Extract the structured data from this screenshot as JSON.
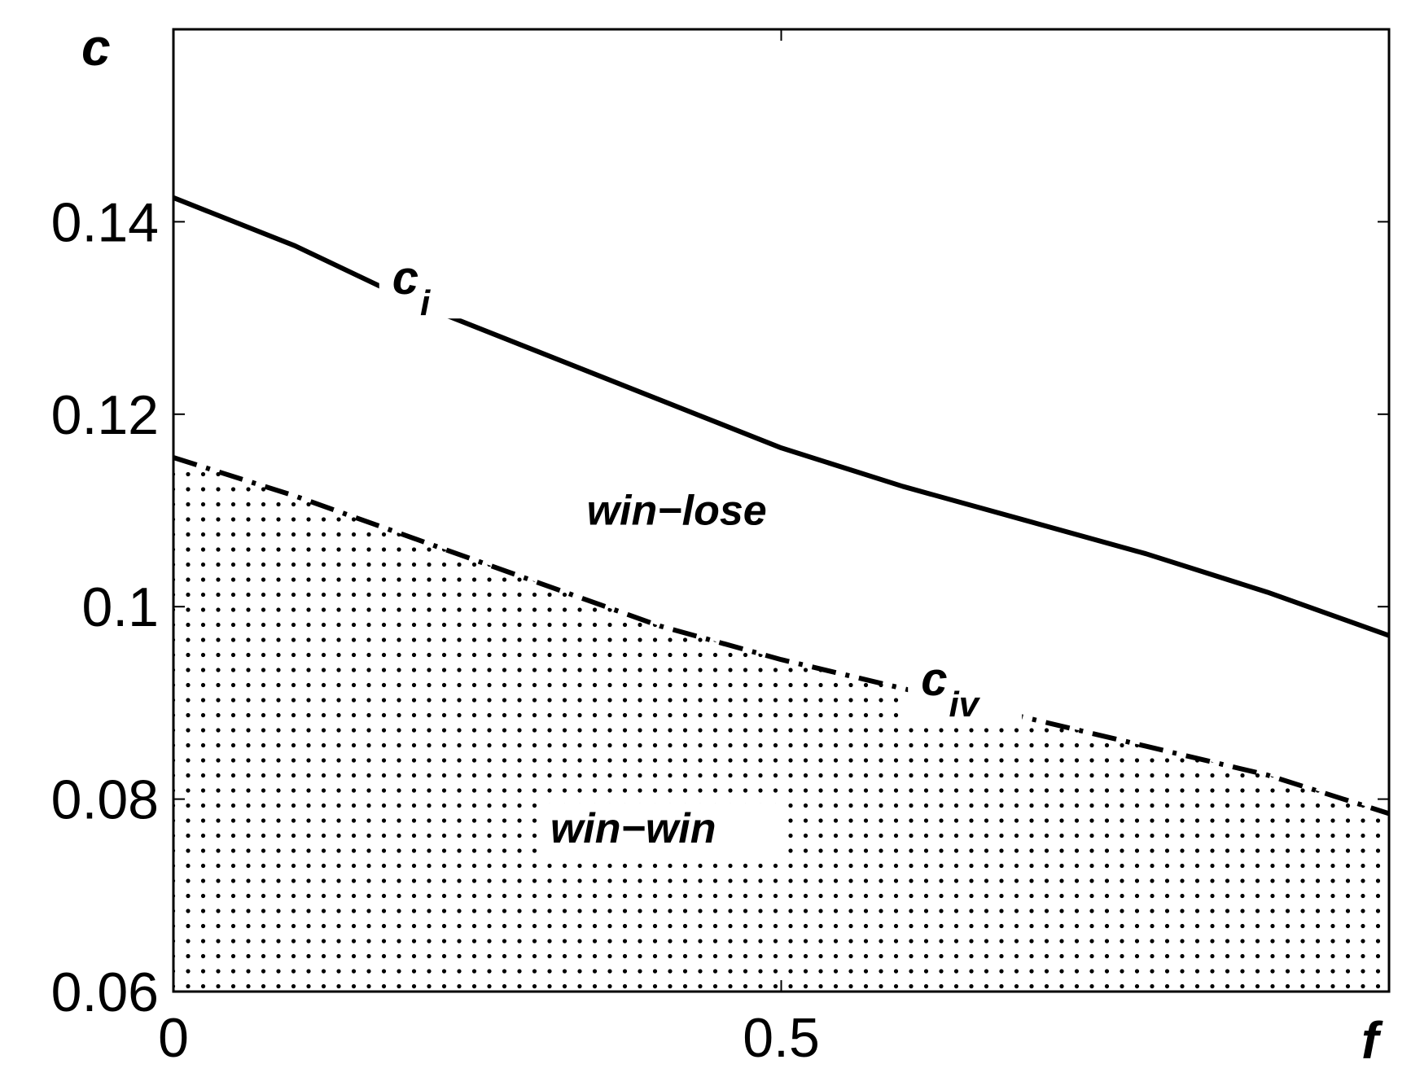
{
  "chart_data": {
    "type": "line",
    "xlabel": "f",
    "ylabel": "c",
    "xlim": [
      0,
      1
    ],
    "ylim": [
      0.06,
      0.16
    ],
    "x_ticks": [
      0,
      0.5,
      1
    ],
    "x_tick_labels": [
      "0",
      "0.5",
      ""
    ],
    "y_ticks": [
      0.06,
      0.08,
      0.1,
      0.12,
      0.14
    ],
    "y_tick_labels": [
      "0.06",
      "0.08",
      "0.1",
      "0.12",
      "0.14"
    ],
    "grid": false,
    "series": [
      {
        "name": "c_i",
        "label_main": "c",
        "label_sub": "i",
        "style": "solid",
        "x": [
          0,
          0.1,
          0.2,
          0.3,
          0.4,
          0.5,
          0.6,
          0.7,
          0.8,
          0.9,
          1.0
        ],
        "values": [
          0.1425,
          0.1375,
          0.1315,
          0.1265,
          0.1215,
          0.1165,
          0.1125,
          0.109,
          0.1055,
          0.1015,
          0.097
        ]
      },
      {
        "name": "c_iv",
        "label_main": "c",
        "label_sub": "iv",
        "style": "dash-dot",
        "x": [
          0,
          0.1,
          0.2,
          0.3,
          0.4,
          0.5,
          0.6,
          0.7,
          0.8,
          0.9,
          1.0
        ],
        "values": [
          0.1155,
          0.1115,
          0.107,
          0.1025,
          0.098,
          0.0945,
          0.0915,
          0.0885,
          0.0855,
          0.0825,
          0.0785
        ]
      }
    ],
    "regions": [
      {
        "label": "win−lose",
        "fill": "none",
        "x": 0.34,
        "y": 0.1085
      },
      {
        "label": "win−win",
        "fill": "dotted",
        "below_series": "c_iv",
        "x": 0.31,
        "y": 0.0755
      }
    ]
  }
}
